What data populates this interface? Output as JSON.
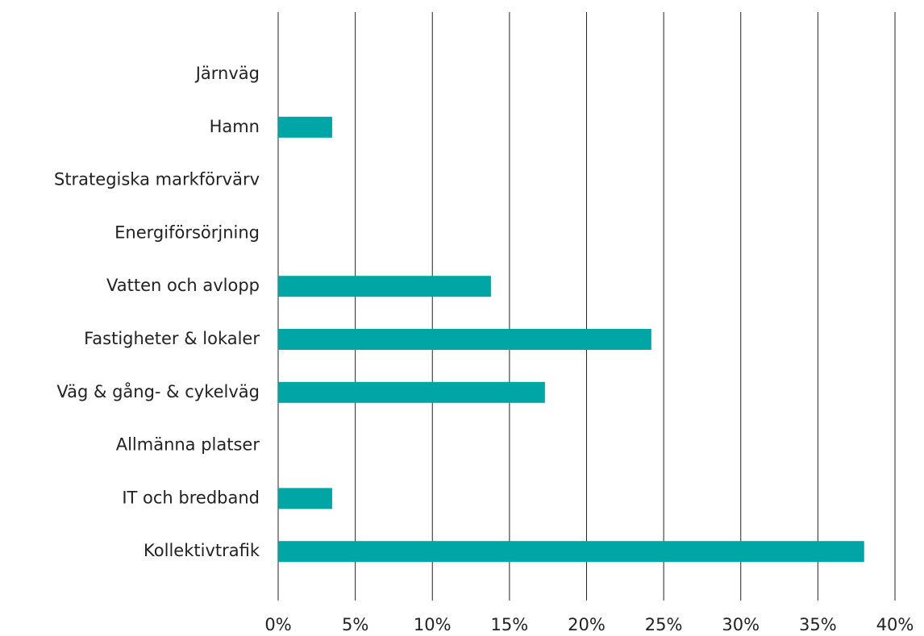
{
  "chart_data": {
    "type": "barh",
    "categories": [
      "Järnväg",
      "Hamn",
      "Strategiska markförvärv",
      "Energiförsörjning",
      "Vatten och avlopp",
      "Fastigheter & lokaler",
      "Väg & gång- & cykelväg",
      "Allmänna platser",
      "IT och bredband",
      "Kollektivtrafik"
    ],
    "values": [
      0,
      3.5,
      0,
      0,
      13.8,
      24.2,
      17.3,
      0,
      3.5,
      38.0
    ],
    "color": "#00a6a6",
    "xlim": [
      0,
      40
    ],
    "xticks": [
      {
        "value": 0,
        "label": "0%"
      },
      {
        "value": 5,
        "label": "5%"
      },
      {
        "value": 10,
        "label": "10%"
      },
      {
        "value": 15,
        "label": "15%"
      },
      {
        "value": 20,
        "label": "20%"
      },
      {
        "value": 25,
        "label": "25%"
      },
      {
        "value": 30,
        "label": "30%"
      },
      {
        "value": 35,
        "label": "35%"
      },
      {
        "value": 40,
        "label": "40%"
      }
    ],
    "grid": true
  }
}
